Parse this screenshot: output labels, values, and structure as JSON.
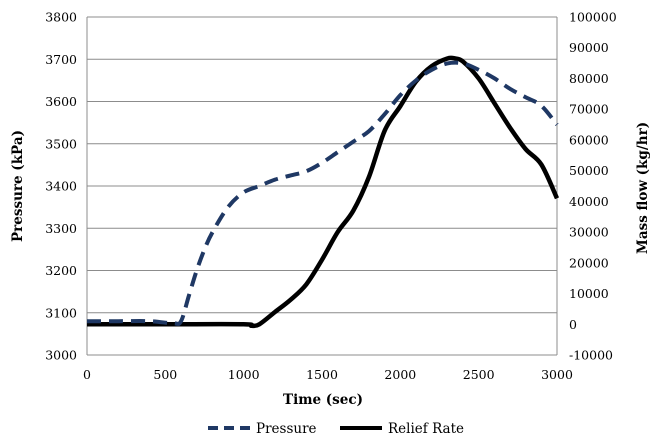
{
  "chart_data": {
    "type": "line",
    "title": "",
    "xlabel": "Time (sec)",
    "ylabel_left": "Pressure (kPa)",
    "ylabel_right": "Mass flow (kg/hr)",
    "xlim": [
      0,
      3000
    ],
    "ylim_left": [
      3000,
      3800
    ],
    "ylim_right": [
      -10000,
      100000
    ],
    "x_ticks": [
      "0",
      "500",
      "1000",
      "1500",
      "2000",
      "2500",
      "3000"
    ],
    "y_left_ticks": [
      "3000",
      "3100",
      "3200",
      "3300",
      "3400",
      "3500",
      "3600",
      "3700",
      "3800"
    ],
    "y_right_ticks": [
      "-10000",
      "0",
      "10000",
      "20000",
      "30000",
      "40000",
      "50000",
      "60000",
      "70000",
      "80000",
      "90000",
      "100000"
    ],
    "grid": true,
    "legend_position": "bottom",
    "series": [
      {
        "name": "Pressure",
        "axis": "left",
        "style": "dashed",
        "color": "#1f3864",
        "x": [
          0,
          200,
          400,
          550,
          600,
          650,
          700,
          750,
          800,
          900,
          1000,
          1100,
          1200,
          1300,
          1400,
          1500,
          1600,
          1700,
          1800,
          1900,
          2000,
          2100,
          2200,
          2300,
          2400,
          2500,
          2600,
          2700,
          2800,
          2900,
          3000
        ],
        "y": [
          3080,
          3080,
          3080,
          3075,
          3080,
          3140,
          3200,
          3250,
          3290,
          3350,
          3385,
          3400,
          3415,
          3425,
          3435,
          3455,
          3480,
          3505,
          3530,
          3570,
          3615,
          3650,
          3675,
          3690,
          3690,
          3675,
          3655,
          3630,
          3610,
          3590,
          3545
        ]
      },
      {
        "name": "Relief Rate",
        "axis": "right",
        "style": "solid",
        "color": "#000000",
        "x": [
          0,
          500,
          1000,
          1050,
          1100,
          1200,
          1300,
          1400,
          1500,
          1600,
          1700,
          1800,
          1900,
          2000,
          2100,
          2200,
          2300,
          2350,
          2400,
          2500,
          2600,
          2700,
          2800,
          2900,
          3000
        ],
        "y": [
          0,
          0,
          0,
          -500,
          0,
          4000,
          8000,
          13000,
          21000,
          30000,
          37000,
          48000,
          63000,
          71000,
          79000,
          84000,
          86500,
          86500,
          85500,
          80000,
          72000,
          64000,
          57000,
          52000,
          41000
        ]
      }
    ]
  }
}
